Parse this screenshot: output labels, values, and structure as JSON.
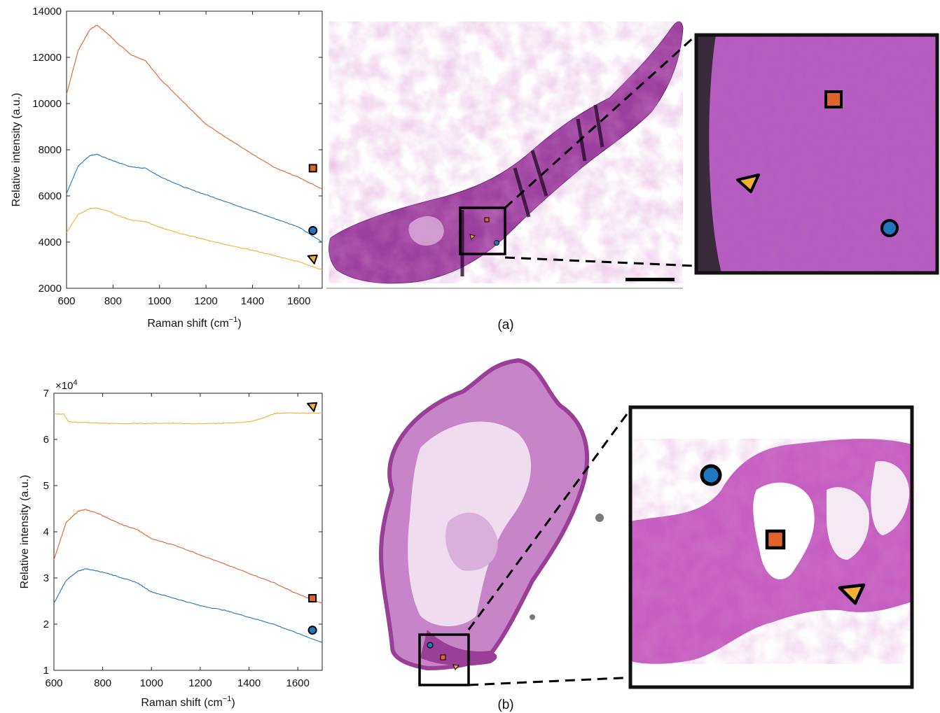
{
  "panels": [
    {
      "caption": "(a)",
      "chart_data": {
        "type": "line",
        "xlabel": "Raman shift (cm",
        "xlabel_sup": "−1",
        "xlabel_end": ")",
        "ylabel": "Relative intensity (a.u.)",
        "xlim": [
          600,
          1700
        ],
        "ylim": [
          2000,
          14000
        ],
        "xticks": [
          600,
          800,
          1000,
          1200,
          1400,
          1600
        ],
        "xtick_labels": [
          "600",
          "800",
          "1000",
          "1200",
          "1400",
          "1600"
        ],
        "yticks": [
          2000,
          4000,
          6000,
          8000,
          10000,
          12000,
          14000
        ],
        "ytick_labels": [
          "2000",
          "4000",
          "6000",
          "8000",
          "10000",
          "12000",
          "14000"
        ],
        "exponent_label": "",
        "grid": false,
        "series": [
          {
            "marker": "square",
            "color": "#E0632A",
            "x": [
              600,
              650,
              700,
              730,
              780,
              820,
              880,
              940,
              1000,
              1100,
              1200,
              1300,
              1400,
              1500,
              1600,
              1700
            ],
            "y": [
              10400,
              12300,
              13200,
              13400,
              13000,
              12600,
              12100,
              11850,
              11100,
              10100,
              9100,
              8450,
              7800,
              7200,
              6800,
              6300
            ],
            "marker_at": [
              1660,
              7200
            ]
          },
          {
            "marker": "circle",
            "color": "#1F77C0",
            "x": [
              600,
              650,
              700,
              730,
              780,
              820,
              880,
              940,
              1000,
              1100,
              1200,
              1300,
              1400,
              1500,
              1600,
              1700
            ],
            "y": [
              6100,
              7300,
              7750,
              7800,
              7600,
              7450,
              7250,
              7200,
              6850,
              6400,
              6050,
              5700,
              5350,
              5000,
              4650,
              4000
            ],
            "marker_at": [
              1660,
              4500
            ]
          },
          {
            "marker": "triangle",
            "color": "#F2B134",
            "x": [
              600,
              650,
              700,
              730,
              780,
              820,
              880,
              940,
              1000,
              1100,
              1200,
              1300,
              1400,
              1500,
              1600,
              1700
            ],
            "y": [
              4400,
              5200,
              5450,
              5480,
              5350,
              5150,
              4950,
              4880,
              4650,
              4350,
              4100,
              3850,
              3650,
              3400,
              3150,
              2800
            ],
            "marker_at": [
              1660,
              3250
            ]
          }
        ]
      }
    },
    {
      "caption": "(b)",
      "chart_data": {
        "type": "line",
        "xlabel": "Raman shift (cm",
        "xlabel_sup": "−1",
        "xlabel_end": ")",
        "ylabel": "Relative intensity (a.u.)",
        "xlim": [
          600,
          1700
        ],
        "ylim": [
          1,
          7
        ],
        "xticks": [
          600,
          800,
          1000,
          1200,
          1400,
          1600
        ],
        "xtick_labels": [
          "600",
          "800",
          "1000",
          "1200",
          "1400",
          "1600"
        ],
        "yticks": [
          1,
          2,
          3,
          4,
          5,
          6,
          7
        ],
        "ytick_labels": [
          "1",
          "2",
          "3",
          "4",
          "5",
          "6",
          "7"
        ],
        "exponent_label": "×10",
        "exponent_sup": "4",
        "grid": false,
        "series": [
          {
            "marker": "triangle",
            "color": "#F2B134",
            "x": [
              600,
              640,
              660,
              700,
              800,
              900,
              1000,
              1100,
              1200,
              1300,
              1400,
              1450,
              1500,
              1520,
              1600,
              1700
            ],
            "y": [
              6.55,
              6.55,
              6.38,
              6.37,
              6.35,
              6.34,
              6.35,
              6.35,
              6.34,
              6.35,
              6.38,
              6.45,
              6.55,
              6.57,
              6.57,
              6.57
            ],
            "marker_at": [
              1660,
              6.7
            ]
          },
          {
            "marker": "square",
            "color": "#E0632A",
            "x": [
              600,
              650,
              700,
              730,
              780,
              820,
              880,
              940,
              1000,
              1100,
              1200,
              1300,
              1400,
              1500,
              1600,
              1700
            ],
            "y": [
              3.4,
              4.2,
              4.45,
              4.48,
              4.4,
              4.3,
              4.15,
              4.05,
              3.85,
              3.7,
              3.5,
              3.3,
              3.1,
              2.9,
              2.65,
              2.45
            ],
            "marker_at": [
              1660,
              2.56
            ]
          },
          {
            "marker": "circle",
            "color": "#1F77C0",
            "x": [
              600,
              650,
              700,
              730,
              780,
              820,
              880,
              940,
              1000,
              1100,
              1200,
              1300,
              1400,
              1500,
              1600,
              1700
            ],
            "y": [
              2.45,
              2.95,
              3.15,
              3.2,
              3.15,
              3.1,
              3.0,
              2.9,
              2.7,
              2.55,
              2.4,
              2.3,
              2.15,
              2.0,
              1.8,
              1.6
            ],
            "marker_at": [
              1660,
              1.87
            ]
          }
        ]
      }
    }
  ],
  "images": {
    "scale_bar": "black horizontal bar"
  }
}
